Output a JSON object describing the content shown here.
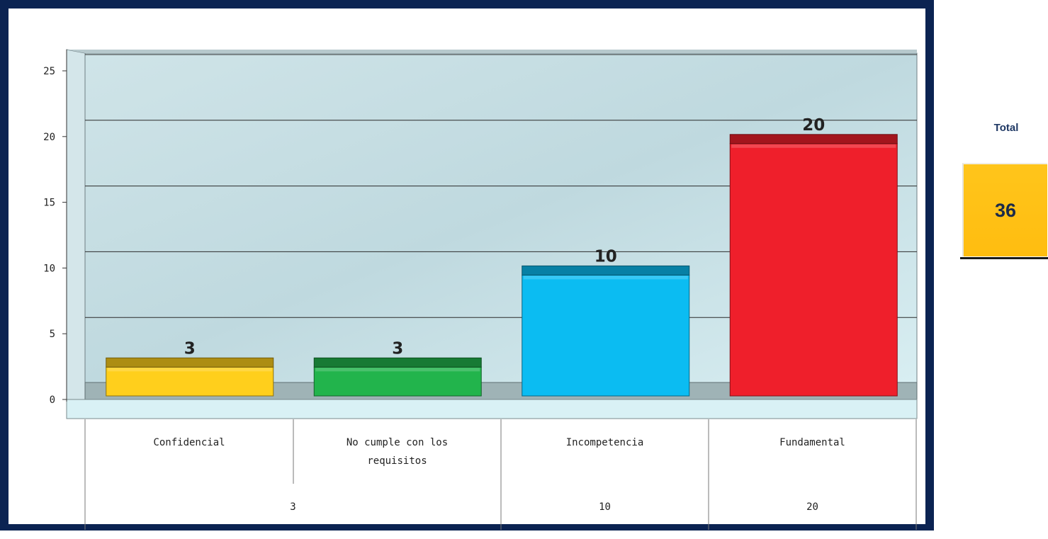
{
  "chart_data": {
    "type": "bar",
    "categories": [
      "Confidencial",
      "No cumple con los requisitos",
      "Incompetencia",
      "Fundamental"
    ],
    "values": [
      3,
      3,
      10,
      20
    ],
    "data_labels": [
      "3",
      "3",
      "10",
      "20"
    ],
    "colors": [
      "#ffcf1c",
      "#22b44c",
      "#0bbcf2",
      "#ef1f2b"
    ],
    "yticks": [
      0,
      5,
      10,
      15,
      20,
      25
    ],
    "ylim": [
      0,
      25
    ],
    "grid": true,
    "title": "",
    "xlabel": "",
    "ylabel": "",
    "table_row": [
      {
        "text": "3",
        "span": 2
      },
      {
        "text": "10",
        "span": 1
      },
      {
        "text": "20",
        "span": 1
      }
    ]
  },
  "total_panel": {
    "title": "Total",
    "value": "36",
    "color": "#ffc21a"
  }
}
